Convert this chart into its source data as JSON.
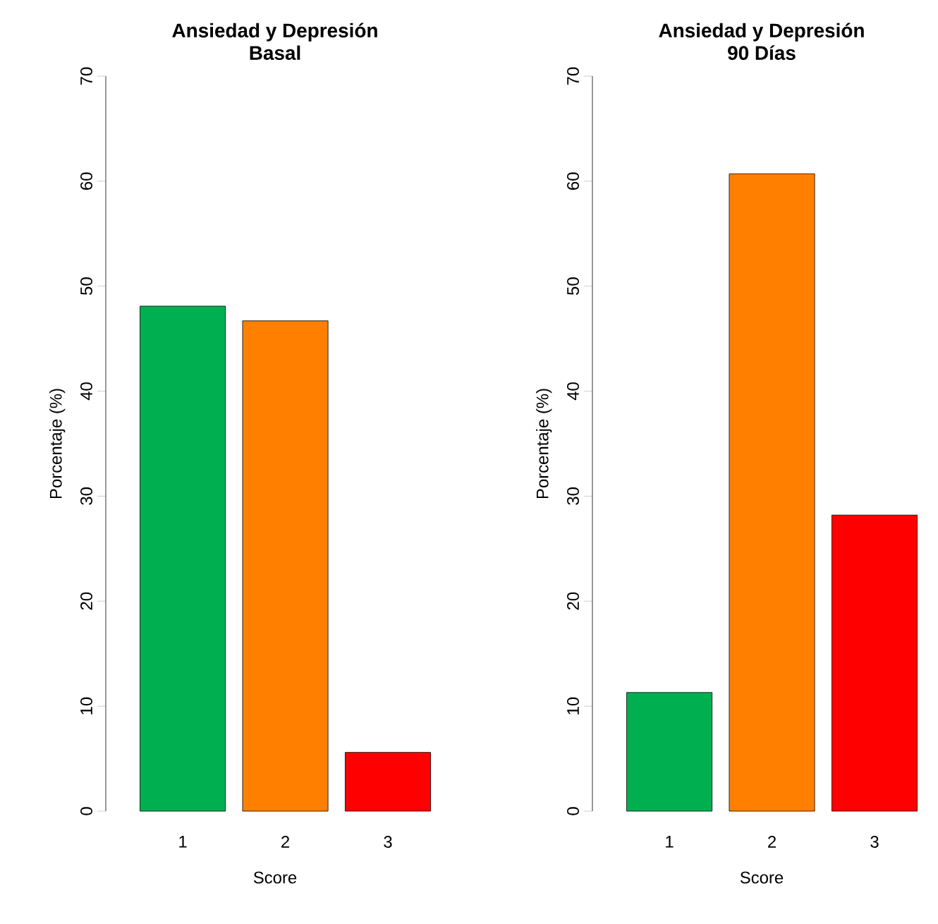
{
  "chart_data": [
    {
      "type": "bar",
      "title": "Ansiedad y Depresión",
      "subtitle": "Basal",
      "xlabel": "Score",
      "ylabel": "Porcentaje (%)",
      "categories": [
        "1",
        "2",
        "3"
      ],
      "values": [
        48.1,
        46.7,
        5.6
      ],
      "colors": [
        "#00b050",
        "#ff7f00",
        "#ff0000"
      ],
      "ylim": [
        0,
        70
      ],
      "yticks": [
        0,
        10,
        20,
        30,
        40,
        50,
        60,
        70
      ]
    },
    {
      "type": "bar",
      "title": "Ansiedad y Depresión",
      "subtitle": "90 Días",
      "xlabel": "Score",
      "ylabel": "Porcentaje (%)",
      "categories": [
        "1",
        "2",
        "3"
      ],
      "values": [
        11.3,
        60.7,
        28.2
      ],
      "colors": [
        "#00b050",
        "#ff7f00",
        "#ff0000"
      ],
      "ylim": [
        0,
        70
      ],
      "yticks": [
        0,
        10,
        20,
        30,
        40,
        50,
        60,
        70
      ]
    }
  ]
}
